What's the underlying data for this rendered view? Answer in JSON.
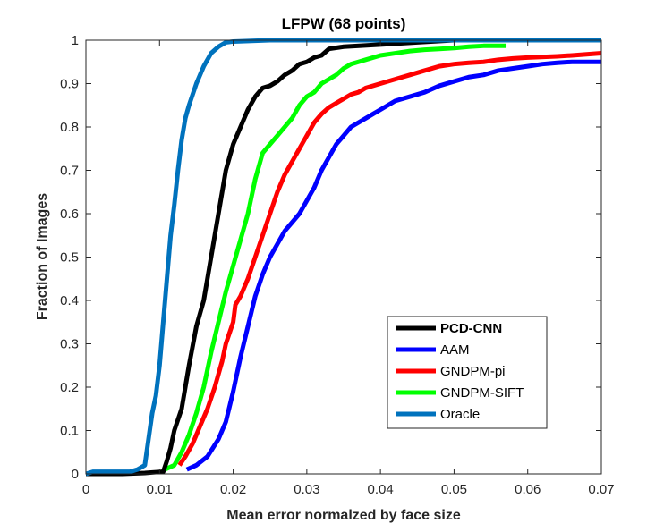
{
  "chart_data": {
    "type": "line",
    "title": "LFPW (68 points)",
    "xlabel": "Mean error normalzed by face size",
    "ylabel": "Fraction of Images",
    "xlim": [
      0,
      0.07
    ],
    "ylim": [
      0,
      1
    ],
    "xticks": [
      0,
      0.01,
      0.02,
      0.03,
      0.04,
      0.05,
      0.06,
      0.07
    ],
    "xtick_labels": [
      "0",
      "0.01",
      "0.02",
      "0.03",
      "0.04",
      "0.05",
      "0.06",
      "0.07"
    ],
    "yticks": [
      0,
      0.1,
      0.2,
      0.3,
      0.4,
      0.5,
      0.6,
      0.7,
      0.8,
      0.9,
      1
    ],
    "ytick_labels": [
      "0",
      "0.1",
      "0.2",
      "0.3",
      "0.4",
      "0.5",
      "0.6",
      "0.7",
      "0.8",
      "0.9",
      "1"
    ],
    "grid": false,
    "legend_position": "bottom-right",
    "series": [
      {
        "name": "PCD-CNN",
        "color": "#000000",
        "bold_label": true,
        "points": [
          [
            0,
            0
          ],
          [
            0.001,
            0
          ],
          [
            0.005,
            0
          ],
          [
            0.008,
            0.002
          ],
          [
            0.0095,
            0.004
          ],
          [
            0.0105,
            0.005
          ],
          [
            0.011,
            0.03
          ],
          [
            0.0115,
            0.06
          ],
          [
            0.012,
            0.1
          ],
          [
            0.013,
            0.15
          ],
          [
            0.014,
            0.25
          ],
          [
            0.015,
            0.34
          ],
          [
            0.016,
            0.4
          ],
          [
            0.017,
            0.5
          ],
          [
            0.018,
            0.6
          ],
          [
            0.019,
            0.7
          ],
          [
            0.02,
            0.76
          ],
          [
            0.021,
            0.8
          ],
          [
            0.022,
            0.84
          ],
          [
            0.023,
            0.87
          ],
          [
            0.024,
            0.89
          ],
          [
            0.025,
            0.895
          ],
          [
            0.026,
            0.905
          ],
          [
            0.027,
            0.92
          ],
          [
            0.028,
            0.93
          ],
          [
            0.029,
            0.945
          ],
          [
            0.03,
            0.95
          ],
          [
            0.031,
            0.96
          ],
          [
            0.032,
            0.965
          ],
          [
            0.033,
            0.98
          ],
          [
            0.035,
            0.985
          ],
          [
            0.04,
            0.99
          ],
          [
            0.045,
            0.995
          ],
          [
            0.05,
            1
          ],
          [
            0.07,
            1
          ]
        ]
      },
      {
        "name": "AAM",
        "color": "#0000ff",
        "bold_label": false,
        "points": [
          [
            0.0137,
            0.01
          ],
          [
            0.015,
            0.02
          ],
          [
            0.0165,
            0.04
          ],
          [
            0.018,
            0.08
          ],
          [
            0.019,
            0.12
          ],
          [
            0.02,
            0.19
          ],
          [
            0.021,
            0.27
          ],
          [
            0.022,
            0.34
          ],
          [
            0.023,
            0.41
          ],
          [
            0.024,
            0.46
          ],
          [
            0.025,
            0.5
          ],
          [
            0.026,
            0.53
          ],
          [
            0.027,
            0.56
          ],
          [
            0.028,
            0.58
          ],
          [
            0.029,
            0.6
          ],
          [
            0.03,
            0.63
          ],
          [
            0.031,
            0.66
          ],
          [
            0.032,
            0.7
          ],
          [
            0.033,
            0.73
          ],
          [
            0.034,
            0.76
          ],
          [
            0.035,
            0.78
          ],
          [
            0.036,
            0.8
          ],
          [
            0.037,
            0.81
          ],
          [
            0.038,
            0.82
          ],
          [
            0.039,
            0.83
          ],
          [
            0.04,
            0.84
          ],
          [
            0.042,
            0.86
          ],
          [
            0.044,
            0.87
          ],
          [
            0.046,
            0.88
          ],
          [
            0.048,
            0.895
          ],
          [
            0.05,
            0.905
          ],
          [
            0.052,
            0.915
          ],
          [
            0.054,
            0.92
          ],
          [
            0.056,
            0.93
          ],
          [
            0.058,
            0.935
          ],
          [
            0.06,
            0.94
          ],
          [
            0.062,
            0.945
          ],
          [
            0.064,
            0.948
          ],
          [
            0.066,
            0.95
          ],
          [
            0.07,
            0.95
          ]
        ]
      },
      {
        "name": "GNDPM-pi",
        "color": "#ff0000",
        "bold_label": false,
        "points": [
          [
            0.0127,
            0.02
          ],
          [
            0.0135,
            0.04
          ],
          [
            0.0145,
            0.07
          ],
          [
            0.0155,
            0.11
          ],
          [
            0.0165,
            0.15
          ],
          [
            0.0175,
            0.2
          ],
          [
            0.0185,
            0.26
          ],
          [
            0.019,
            0.3
          ],
          [
            0.02,
            0.35
          ],
          [
            0.0203,
            0.39
          ],
          [
            0.021,
            0.41
          ],
          [
            0.022,
            0.45
          ],
          [
            0.023,
            0.5
          ],
          [
            0.024,
            0.55
          ],
          [
            0.025,
            0.6
          ],
          [
            0.026,
            0.65
          ],
          [
            0.027,
            0.69
          ],
          [
            0.028,
            0.72
          ],
          [
            0.029,
            0.75
          ],
          [
            0.03,
            0.78
          ],
          [
            0.031,
            0.81
          ],
          [
            0.032,
            0.83
          ],
          [
            0.033,
            0.845
          ],
          [
            0.034,
            0.855
          ],
          [
            0.035,
            0.865
          ],
          [
            0.036,
            0.875
          ],
          [
            0.037,
            0.88
          ],
          [
            0.038,
            0.89
          ],
          [
            0.04,
            0.9
          ],
          [
            0.042,
            0.91
          ],
          [
            0.044,
            0.92
          ],
          [
            0.046,
            0.93
          ],
          [
            0.048,
            0.94
          ],
          [
            0.05,
            0.945
          ],
          [
            0.052,
            0.948
          ],
          [
            0.054,
            0.95
          ],
          [
            0.056,
            0.955
          ],
          [
            0.058,
            0.958
          ],
          [
            0.06,
            0.96
          ],
          [
            0.064,
            0.963
          ],
          [
            0.066,
            0.965
          ],
          [
            0.07,
            0.97
          ]
        ]
      },
      {
        "name": "GNDPM-SIFT",
        "color": "#00ff00",
        "bold_label": false,
        "points": [
          [
            0.0107,
            0.01
          ],
          [
            0.012,
            0.02
          ],
          [
            0.013,
            0.05
          ],
          [
            0.014,
            0.09
          ],
          [
            0.015,
            0.14
          ],
          [
            0.016,
            0.2
          ],
          [
            0.017,
            0.28
          ],
          [
            0.018,
            0.35
          ],
          [
            0.019,
            0.42
          ],
          [
            0.02,
            0.48
          ],
          [
            0.021,
            0.54
          ],
          [
            0.022,
            0.6
          ],
          [
            0.023,
            0.68
          ],
          [
            0.024,
            0.74
          ],
          [
            0.025,
            0.76
          ],
          [
            0.026,
            0.78
          ],
          [
            0.027,
            0.8
          ],
          [
            0.028,
            0.82
          ],
          [
            0.029,
            0.85
          ],
          [
            0.03,
            0.87
          ],
          [
            0.031,
            0.88
          ],
          [
            0.032,
            0.9
          ],
          [
            0.033,
            0.91
          ],
          [
            0.034,
            0.92
          ],
          [
            0.035,
            0.935
          ],
          [
            0.036,
            0.945
          ],
          [
            0.037,
            0.95
          ],
          [
            0.038,
            0.955
          ],
          [
            0.04,
            0.965
          ],
          [
            0.042,
            0.97
          ],
          [
            0.044,
            0.975
          ],
          [
            0.046,
            0.978
          ],
          [
            0.048,
            0.98
          ],
          [
            0.05,
            0.982
          ],
          [
            0.052,
            0.985
          ],
          [
            0.054,
            0.987
          ],
          [
            0.057,
            0.987
          ]
        ]
      },
      {
        "name": "Oracle",
        "color": "#0072bd",
        "bold_label": false,
        "points": [
          [
            0,
            0
          ],
          [
            0.001,
            0.005
          ],
          [
            0.005,
            0.005
          ],
          [
            0.006,
            0.005
          ],
          [
            0.007,
            0.01
          ],
          [
            0.0075,
            0.015
          ],
          [
            0.008,
            0.02
          ],
          [
            0.0085,
            0.08
          ],
          [
            0.009,
            0.14
          ],
          [
            0.0095,
            0.18
          ],
          [
            0.01,
            0.25
          ],
          [
            0.0105,
            0.35
          ],
          [
            0.011,
            0.45
          ],
          [
            0.0115,
            0.55
          ],
          [
            0.012,
            0.62
          ],
          [
            0.0125,
            0.7
          ],
          [
            0.013,
            0.77
          ],
          [
            0.0135,
            0.82
          ],
          [
            0.014,
            0.85
          ],
          [
            0.015,
            0.9
          ],
          [
            0.016,
            0.94
          ],
          [
            0.017,
            0.97
          ],
          [
            0.018,
            0.985
          ],
          [
            0.019,
            0.995
          ],
          [
            0.02,
            0.997
          ],
          [
            0.025,
            1
          ],
          [
            0.07,
            1
          ]
        ]
      }
    ]
  }
}
